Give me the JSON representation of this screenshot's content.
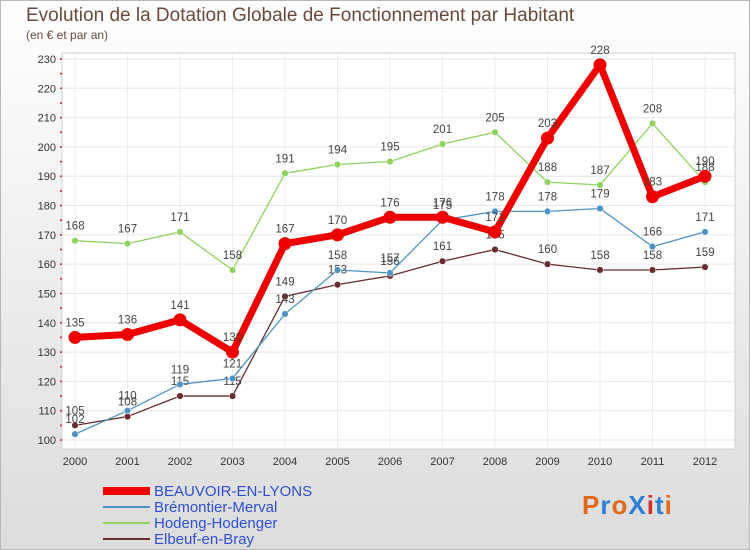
{
  "chart_data": {
    "type": "line",
    "title": "Evolution de la Dotation Globale de Fonctionnement par Habitant",
    "subtitle": "(en € et par an)",
    "xlabel": "",
    "ylabel": "",
    "categories": [
      "2000",
      "2001",
      "2002",
      "2003",
      "2004",
      "2005",
      "2006",
      "2007",
      "2008",
      "2009",
      "2010",
      "2011",
      "2012"
    ],
    "ylim": [
      100,
      230
    ],
    "yticks": [
      100,
      110,
      120,
      130,
      140,
      150,
      160,
      170,
      180,
      190,
      200,
      210,
      220,
      230
    ],
    "grid": true,
    "legend_position": "bottom-left",
    "series": [
      {
        "name": "Elbeuf-en-Bray",
        "color": "#6b2c2c",
        "values": [
          105,
          108,
          115,
          115,
          149,
          153,
          156,
          161,
          165,
          160,
          158,
          158,
          159
        ]
      },
      {
        "name": "Hodeng-Hodenger",
        "color": "#8ed45f",
        "values": [
          168,
          167,
          171,
          158,
          191,
          194,
          195,
          201,
          205,
          188,
          187,
          208,
          188
        ]
      },
      {
        "name": "Brémontier-Merval",
        "color": "#4f93c4",
        "values": [
          102,
          110,
          119,
          121,
          143,
          158,
          157,
          175,
          178,
          178,
          179,
          166,
          171
        ]
      },
      {
        "name": "BEAUVOIR-EN-LYONS",
        "color": "#ee0000",
        "values": [
          135,
          136,
          141,
          130,
          167,
          170,
          176,
          176,
          171,
          203,
          228,
          183,
          190
        ]
      }
    ]
  },
  "legend": {
    "items": [
      {
        "label": "BEAUVOIR-EN-LYONS",
        "color": "#ee0000"
      },
      {
        "label": "Brémontier-Merval",
        "color": "#4f93c4"
      },
      {
        "label": "Hodeng-Hodenger",
        "color": "#8ed45f"
      },
      {
        "label": "Elbeuf-en-Bray",
        "color": "#6b2c2c"
      }
    ]
  },
  "logo": {
    "text": "ProXiti"
  }
}
